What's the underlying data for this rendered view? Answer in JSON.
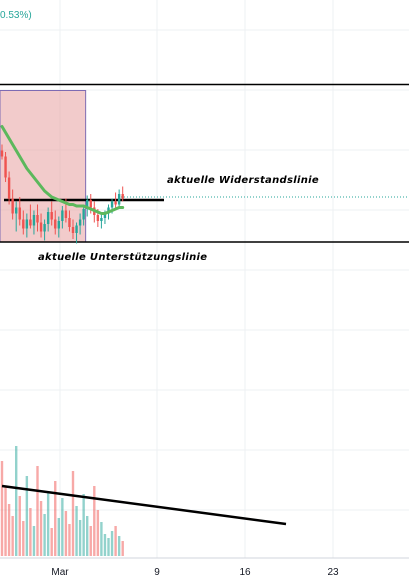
{
  "header": {
    "change_label": "0.53%)"
  },
  "chart_data": {
    "type": "candlestick",
    "x_tick_labels": [
      "Mar",
      "9",
      "16",
      "23"
    ],
    "annotations": {
      "resistance": "aktuelle Widerstandslinie",
      "support": "aktuelle Unterstützungslinie"
    },
    "price": {
      "candles": [
        {
          "o": 76,
          "h": 80,
          "l": 70,
          "c": 72
        },
        {
          "o": 72,
          "h": 75,
          "l": 55,
          "c": 58
        },
        {
          "o": 58,
          "h": 62,
          "l": 40,
          "c": 44
        },
        {
          "o": 44,
          "h": 50,
          "l": 30,
          "c": 34
        },
        {
          "o": 34,
          "h": 42,
          "l": 22,
          "c": 38
        },
        {
          "o": 38,
          "h": 45,
          "l": 26,
          "c": 30
        },
        {
          "o": 30,
          "h": 36,
          "l": 20,
          "c": 24
        },
        {
          "o": 24,
          "h": 34,
          "l": 18,
          "c": 30
        },
        {
          "o": 30,
          "h": 40,
          "l": 24,
          "c": 26
        },
        {
          "o": 26,
          "h": 36,
          "l": 20,
          "c": 33
        },
        {
          "o": 33,
          "h": 40,
          "l": 22,
          "c": 28
        },
        {
          "o": 28,
          "h": 34,
          "l": 18,
          "c": 22
        },
        {
          "o": 22,
          "h": 30,
          "l": 16,
          "c": 27
        },
        {
          "o": 27,
          "h": 38,
          "l": 22,
          "c": 35
        },
        {
          "o": 35,
          "h": 42,
          "l": 26,
          "c": 30
        },
        {
          "o": 30,
          "h": 36,
          "l": 20,
          "c": 24
        },
        {
          "o": 24,
          "h": 32,
          "l": 18,
          "c": 29
        },
        {
          "o": 29,
          "h": 39,
          "l": 24,
          "c": 36
        },
        {
          "o": 36,
          "h": 44,
          "l": 28,
          "c": 31
        },
        {
          "o": 31,
          "h": 36,
          "l": 22,
          "c": 25
        },
        {
          "o": 25,
          "h": 30,
          "l": 17,
          "c": 21
        },
        {
          "o": 21,
          "h": 28,
          "l": 14,
          "c": 26
        },
        {
          "o": 26,
          "h": 34,
          "l": 20,
          "c": 30
        },
        {
          "o": 30,
          "h": 40,
          "l": 26,
          "c": 37
        },
        {
          "o": 37,
          "h": 46,
          "l": 32,
          "c": 43
        },
        {
          "o": 43,
          "h": 47,
          "l": 34,
          "c": 38
        },
        {
          "o": 38,
          "h": 42,
          "l": 28,
          "c": 33
        },
        {
          "o": 33,
          "h": 37,
          "l": 25,
          "c": 29
        },
        {
          "o": 29,
          "h": 33,
          "l": 24,
          "c": 31
        },
        {
          "o": 31,
          "h": 36,
          "l": 27,
          "c": 34
        },
        {
          "o": 34,
          "h": 40,
          "l": 30,
          "c": 38
        },
        {
          "o": 38,
          "h": 44,
          "l": 34,
          "c": 42
        },
        {
          "o": 42,
          "h": 48,
          "l": 36,
          "c": 40
        },
        {
          "o": 40,
          "h": 50,
          "l": 38,
          "c": 47
        },
        {
          "o": 47,
          "h": 52,
          "l": 42,
          "c": 44
        }
      ],
      "moving_average": [
        92,
        88,
        84,
        80,
        76,
        72,
        68,
        64,
        61,
        58,
        55,
        52,
        49,
        47,
        45,
        44,
        43,
        42,
        41,
        40,
        40,
        39,
        39,
        39,
        38,
        37,
        36,
        35,
        34,
        34,
        35,
        36,
        37,
        38,
        38
      ],
      "resistance_level": 43,
      "support_level": 15,
      "top_level": 120,
      "last_price": 45,
      "range_box": {
        "from_index": 0,
        "to_index": 23,
        "high": 116,
        "low": 15
      }
    },
    "volume": {
      "values": [
        95,
        70,
        52,
        40,
        110,
        60,
        35,
        80,
        48,
        30,
        90,
        55,
        42,
        65,
        28,
        75,
        38,
        58,
        45,
        32,
        85,
        50,
        36,
        62,
        40,
        30,
        70,
        46,
        34,
        22,
        18,
        25,
        30,
        20,
        15
      ],
      "trend_line": {
        "from_index": 0,
        "from_value": 70,
        "to_index": 80,
        "to_value": 32
      }
    },
    "colors": {
      "up": "#26a69a",
      "down": "#ef5350",
      "moving_average": "#5cb85c",
      "box_fill": "#e8a0a0",
      "box_border": "#7e6bb3",
      "grid": "#eef0f3",
      "last_price_line": "#26a69a",
      "annotation_lines": "#000000"
    }
  }
}
